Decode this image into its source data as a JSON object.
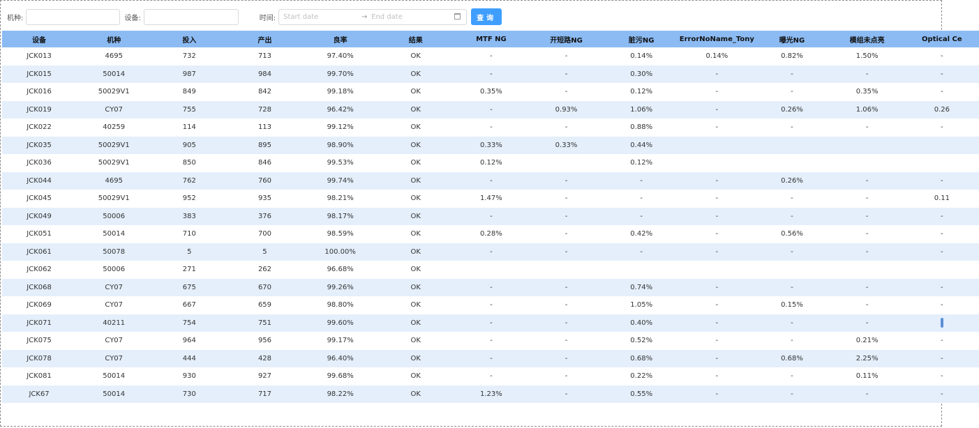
{
  "filters": {
    "model_label": "机种:",
    "model_value": "",
    "device_label": "设备:",
    "device_value": "",
    "time_label": "时间:",
    "start_placeholder": "Start date",
    "range_separator": "→",
    "end_placeholder": "End date",
    "query_button": "查询"
  },
  "table": {
    "headers": [
      "设备",
      "机种",
      "投入",
      "产出",
      "良率",
      "结果",
      "MTF NG",
      "开短路NG",
      "脏污NG",
      "ErrorNoName_Tony",
      "曝光NG",
      "模组未点亮",
      "Optical Ce"
    ],
    "rows": [
      [
        "JCK013",
        "4695",
        "732",
        "713",
        "97.40%",
        "OK",
        "-",
        "-",
        "0.14%",
        "0.14%",
        "0.82%",
        "1.50%",
        "-"
      ],
      [
        "JCK015",
        "50014",
        "987",
        "984",
        "99.70%",
        "OK",
        "-",
        "-",
        "0.30%",
        "-",
        "-",
        "-",
        "-"
      ],
      [
        "JCK016",
        "50029V1",
        "849",
        "842",
        "99.18%",
        "OK",
        "0.35%",
        "-",
        "0.12%",
        "-",
        "-",
        "0.35%",
        "-"
      ],
      [
        "JCK019",
        "CY07",
        "755",
        "728",
        "96.42%",
        "OK",
        "-",
        "0.93%",
        "1.06%",
        "-",
        "0.26%",
        "1.06%",
        "0.26"
      ],
      [
        "JCK022",
        "40259",
        "114",
        "113",
        "99.12%",
        "OK",
        "-",
        "-",
        "0.88%",
        "-",
        "-",
        "-",
        "-"
      ],
      [
        "JCK035",
        "50029V1",
        "905",
        "895",
        "98.90%",
        "OK",
        "0.33%",
        "0.33%",
        "0.44%",
        "",
        "",
        "",
        ""
      ],
      [
        "JCK036",
        "50029V1",
        "850",
        "846",
        "99.53%",
        "OK",
        "0.12%",
        "",
        "0.12%",
        "",
        "",
        "",
        ""
      ],
      [
        "JCK044",
        "4695",
        "762",
        "760",
        "99.74%",
        "OK",
        "-",
        "-",
        "-",
        "-",
        "0.26%",
        "-",
        "-"
      ],
      [
        "JCK045",
        "50029V1",
        "952",
        "935",
        "98.21%",
        "OK",
        "1.47%",
        "-",
        "-",
        "-",
        "-",
        "-",
        "0.11"
      ],
      [
        "JCK049",
        "50006",
        "383",
        "376",
        "98.17%",
        "OK",
        "-",
        "-",
        "-",
        "-",
        "-",
        "-",
        "-"
      ],
      [
        "JCK051",
        "50014",
        "710",
        "700",
        "98.59%",
        "OK",
        "0.28%",
        "-",
        "0.42%",
        "-",
        "0.56%",
        "-",
        "-"
      ],
      [
        "JCK061",
        "50078",
        "5",
        "5",
        "100.00%",
        "OK",
        "-",
        "-",
        "-",
        "-",
        "-",
        "-",
        "-"
      ],
      [
        "JCK062",
        "50006",
        "271",
        "262",
        "96.68%",
        "OK",
        "",
        "",
        "",
        "",
        "",
        "",
        ""
      ],
      [
        "JCK068",
        "CY07",
        "675",
        "670",
        "99.26%",
        "OK",
        "-",
        "-",
        "0.74%",
        "-",
        "-",
        "-",
        "-"
      ],
      [
        "JCK069",
        "CY07",
        "667",
        "659",
        "98.80%",
        "OK",
        "-",
        "-",
        "1.05%",
        "-",
        "0.15%",
        "-",
        "-"
      ],
      [
        "JCK071",
        "40211",
        "754",
        "751",
        "99.60%",
        "OK",
        "-",
        "-",
        "0.40%",
        "-",
        "-",
        "-",
        "-"
      ],
      [
        "JCK075",
        "CY07",
        "964",
        "956",
        "99.17%",
        "OK",
        "-",
        "-",
        "0.52%",
        "-",
        "-",
        "0.21%",
        "-"
      ],
      [
        "JCK078",
        "CY07",
        "444",
        "428",
        "96.40%",
        "OK",
        "-",
        "-",
        "0.68%",
        "-",
        "0.68%",
        "2.25%",
        "-"
      ],
      [
        "JCK081",
        "50014",
        "930",
        "927",
        "99.68%",
        "OK",
        "-",
        "-",
        "0.22%",
        "-",
        "-",
        "0.11%",
        "-"
      ],
      [
        "JCK67",
        "50014",
        "730",
        "717",
        "98.22%",
        "OK",
        "1.23%",
        "-",
        "0.55%",
        "-",
        "-",
        "-",
        "-"
      ]
    ]
  },
  "colors": {
    "header_bg": "#8cbbf3",
    "stripe_bg": "#e4effb",
    "button_bg": "#409eff"
  }
}
